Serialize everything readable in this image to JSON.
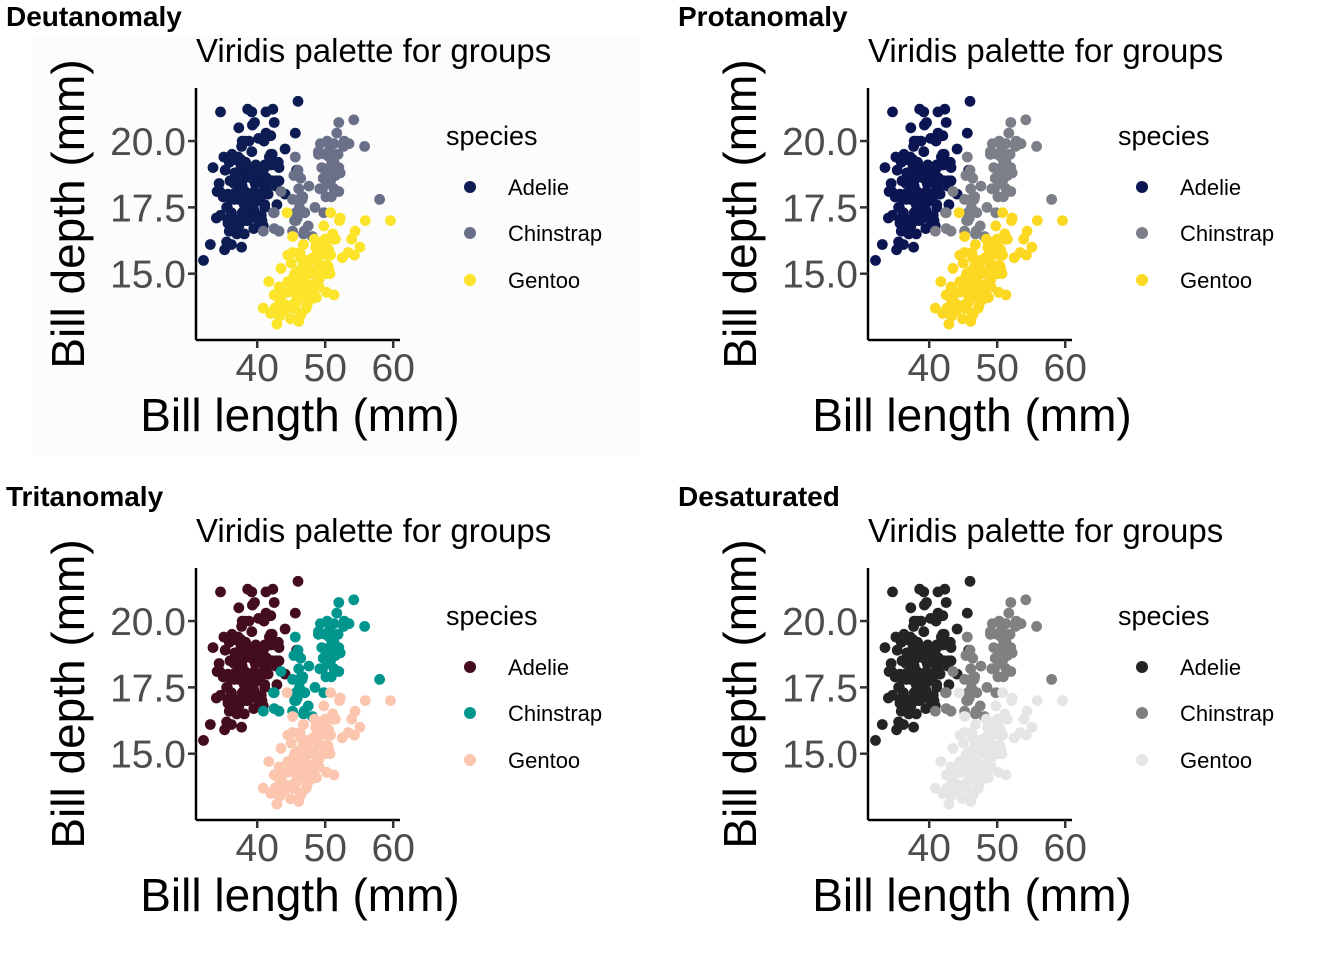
{
  "chart_data": [
    {
      "type": "scatter",
      "panel_tag": "Deutanomaly",
      "title": "Viridis palette for groups",
      "xlabel": "Bill length (mm)",
      "ylabel": "Bill depth (mm)",
      "xlim": [
        31,
        61
      ],
      "ylim": [
        12.5,
        22
      ],
      "xticks": [
        40,
        50,
        60
      ],
      "yticks": [
        15.0,
        17.5,
        20.0
      ],
      "ytick_labels": [
        "15.0",
        "17.5",
        "20.0"
      ],
      "grid": false,
      "legend": {
        "title": "species",
        "position": "right"
      },
      "background": "#fcfcfc",
      "series": [
        {
          "name": "Adelie",
          "color": "#0d1c53"
        },
        {
          "name": "Chinstrap",
          "color": "#6b7089"
        },
        {
          "name": "Gentoo",
          "color": "#fbe42a"
        }
      ]
    },
    {
      "type": "scatter",
      "panel_tag": "Protanomaly",
      "title": "Viridis palette for groups",
      "xlabel": "Bill length (mm)",
      "ylabel": "Bill depth (mm)",
      "xlim": [
        31,
        61
      ],
      "ylim": [
        12.5,
        22
      ],
      "xticks": [
        40,
        50,
        60
      ],
      "yticks": [
        15.0,
        17.5,
        20.0
      ],
      "ytick_labels": [
        "15.0",
        "17.5",
        "20.0"
      ],
      "grid": false,
      "legend": {
        "title": "species",
        "position": "right"
      },
      "background": "#ffffff",
      "series": [
        {
          "name": "Adelie",
          "color": "#0b1552"
        },
        {
          "name": "Chinstrap",
          "color": "#7c7e88"
        },
        {
          "name": "Gentoo",
          "color": "#fdd822"
        }
      ]
    },
    {
      "type": "scatter",
      "panel_tag": "Tritanomaly",
      "title": "Viridis palette for groups",
      "xlabel": "Bill length (mm)",
      "ylabel": "Bill depth (mm)",
      "xlim": [
        31,
        61
      ],
      "ylim": [
        12.5,
        22
      ],
      "xticks": [
        40,
        50,
        60
      ],
      "yticks": [
        15.0,
        17.5,
        20.0
      ],
      "ytick_labels": [
        "15.0",
        "17.5",
        "20.0"
      ],
      "grid": false,
      "legend": {
        "title": "species",
        "position": "right"
      },
      "background": "#ffffff",
      "series": [
        {
          "name": "Adelie",
          "color": "#430d1f"
        },
        {
          "name": "Chinstrap",
          "color": "#00968e"
        },
        {
          "name": "Gentoo",
          "color": "#fcc5ae"
        }
      ]
    },
    {
      "type": "scatter",
      "panel_tag": "Desaturated",
      "title": "Viridis palette for groups",
      "xlabel": "Bill length (mm)",
      "ylabel": "Bill depth (mm)",
      "xlim": [
        31,
        61
      ],
      "ylim": [
        12.5,
        22
      ],
      "xticks": [
        40,
        50,
        60
      ],
      "yticks": [
        15.0,
        17.5,
        20.0
      ],
      "ytick_labels": [
        "15.0",
        "17.5",
        "20.0"
      ],
      "grid": false,
      "legend": {
        "title": "species",
        "position": "right"
      },
      "background": "#ffffff",
      "series": [
        {
          "name": "Adelie",
          "color": "#242424"
        },
        {
          "name": "Chinstrap",
          "color": "#808080"
        },
        {
          "name": "Gentoo",
          "color": "#e5e5e5"
        }
      ]
    }
  ],
  "points": {
    "Adelie": [
      [
        39.1,
        18.7
      ],
      [
        39.5,
        17.4
      ],
      [
        40.3,
        18.0
      ],
      [
        36.7,
        19.3
      ],
      [
        39.3,
        20.6
      ],
      [
        38.9,
        17.8
      ],
      [
        39.2,
        19.6
      ],
      [
        34.1,
        18.1
      ],
      [
        42.0,
        20.2
      ],
      [
        37.8,
        17.1
      ],
      [
        37.8,
        17.3
      ],
      [
        41.1,
        17.6
      ],
      [
        38.6,
        21.2
      ],
      [
        34.6,
        21.1
      ],
      [
        36.6,
        17.8
      ],
      [
        38.7,
        19.0
      ],
      [
        42.5,
        20.7
      ],
      [
        34.4,
        18.4
      ],
      [
        46.0,
        21.5
      ],
      [
        37.8,
        18.3
      ],
      [
        37.7,
        18.7
      ],
      [
        35.9,
        19.2
      ],
      [
        38.2,
        18.1
      ],
      [
        38.8,
        17.2
      ],
      [
        35.3,
        18.9
      ],
      [
        40.6,
        18.6
      ],
      [
        40.5,
        17.9
      ],
      [
        37.9,
        18.6
      ],
      [
        40.5,
        18.9
      ],
      [
        39.5,
        16.7
      ],
      [
        37.2,
        18.1
      ],
      [
        39.5,
        17.8
      ],
      [
        40.9,
        18.9
      ],
      [
        36.4,
        17.0
      ],
      [
        39.2,
        21.1
      ],
      [
        38.8,
        20.0
      ],
      [
        42.2,
        18.5
      ],
      [
        37.6,
        19.3
      ],
      [
        39.8,
        19.1
      ],
      [
        36.5,
        18.0
      ],
      [
        40.8,
        18.4
      ],
      [
        36.0,
        18.5
      ],
      [
        44.1,
        19.7
      ],
      [
        37.0,
        16.9
      ],
      [
        39.6,
        18.8
      ],
      [
        41.1,
        19.0
      ],
      [
        37.5,
        18.9
      ],
      [
        36.0,
        17.9
      ],
      [
        42.3,
        21.2
      ],
      [
        39.6,
        17.7
      ],
      [
        40.1,
        18.9
      ],
      [
        35.0,
        17.9
      ],
      [
        42.0,
        19.5
      ],
      [
        34.5,
        18.1
      ],
      [
        41.4,
        18.6
      ],
      [
        39.0,
        17.5
      ],
      [
        40.6,
        18.8
      ],
      [
        36.5,
        16.6
      ],
      [
        37.6,
        19.1
      ],
      [
        35.7,
        16.9
      ],
      [
        41.3,
        21.1
      ],
      [
        37.6,
        17.0
      ],
      [
        41.1,
        18.2
      ],
      [
        36.4,
        17.1
      ],
      [
        41.6,
        18.0
      ],
      [
        35.5,
        16.2
      ],
      [
        41.1,
        19.1
      ],
      [
        35.9,
        16.6
      ],
      [
        41.8,
        19.4
      ],
      [
        33.5,
        19.0
      ],
      [
        39.7,
        18.4
      ],
      [
        39.6,
        17.2
      ],
      [
        45.8,
        18.9
      ],
      [
        35.5,
        17.5
      ],
      [
        42.8,
        18.5
      ],
      [
        40.9,
        16.8
      ],
      [
        37.2,
        19.4
      ],
      [
        36.2,
        16.1
      ],
      [
        42.1,
        19.1
      ],
      [
        34.6,
        17.2
      ],
      [
        42.9,
        17.6
      ],
      [
        36.7,
        18.8
      ],
      [
        35.1,
        19.4
      ],
      [
        37.3,
        17.8
      ],
      [
        41.3,
        20.3
      ],
      [
        36.3,
        19.5
      ],
      [
        36.9,
        18.6
      ],
      [
        38.3,
        19.2
      ],
      [
        38.9,
        18.8
      ],
      [
        35.7,
        18.0
      ],
      [
        41.1,
        18.1
      ],
      [
        34.0,
        17.1
      ],
      [
        39.6,
        18.1
      ],
      [
        36.2,
        17.3
      ],
      [
        40.8,
        18.9
      ],
      [
        38.1,
        18.6
      ],
      [
        40.3,
        18.5
      ],
      [
        33.1,
        16.1
      ],
      [
        43.2,
        18.5
      ],
      [
        35.0,
        17.9
      ],
      [
        41.0,
        20.0
      ],
      [
        37.7,
        16.0
      ],
      [
        37.8,
        20.0
      ],
      [
        37.9,
        18.6
      ],
      [
        39.7,
        18.9
      ],
      [
        38.6,
        17.2
      ],
      [
        38.2,
        20.0
      ],
      [
        38.1,
        17.0
      ],
      [
        43.2,
        19.0
      ],
      [
        38.1,
        16.5
      ],
      [
        45.6,
        20.3
      ],
      [
        39.7,
        17.7
      ],
      [
        42.2,
        19.5
      ],
      [
        39.6,
        20.7
      ],
      [
        42.7,
        18.3
      ],
      [
        38.6,
        17.0
      ],
      [
        37.3,
        20.5
      ],
      [
        35.7,
        17.0
      ],
      [
        41.1,
        18.6
      ],
      [
        36.2,
        17.2
      ],
      [
        37.7,
        19.8
      ],
      [
        40.2,
        17.0
      ],
      [
        41.4,
        18.5
      ],
      [
        35.2,
        15.9
      ],
      [
        40.6,
        19.0
      ],
      [
        38.8,
        17.6
      ],
      [
        41.5,
        18.3
      ],
      [
        39.0,
        17.1
      ],
      [
        44.1,
        18.0
      ],
      [
        38.5,
        17.9
      ],
      [
        43.1,
        19.2
      ],
      [
        36.8,
        18.5
      ],
      [
        37.5,
        18.5
      ],
      [
        38.1,
        17.6
      ],
      [
        41.1,
        17.5
      ],
      [
        35.6,
        17.5
      ],
      [
        40.2,
        20.1
      ],
      [
        37.0,
        16.5
      ],
      [
        39.7,
        17.9
      ],
      [
        40.2,
        17.1
      ],
      [
        40.6,
        17.2
      ],
      [
        32.1,
        15.5
      ],
      [
        40.7,
        17.0
      ],
      [
        37.3,
        16.8
      ],
      [
        39.0,
        18.7
      ],
      [
        39.2,
        18.6
      ],
      [
        36.6,
        18.4
      ],
      [
        36.0,
        17.8
      ],
      [
        37.8,
        18.1
      ],
      [
        36.0,
        17.1
      ],
      [
        41.5,
        18.5
      ]
    ],
    "Chinstrap": [
      [
        46.5,
        17.9
      ],
      [
        50.0,
        19.5
      ],
      [
        51.3,
        19.2
      ],
      [
        45.4,
        18.7
      ],
      [
        52.7,
        19.8
      ],
      [
        45.2,
        17.8
      ],
      [
        46.1,
        18.2
      ],
      [
        51.3,
        18.2
      ],
      [
        46.0,
        18.9
      ],
      [
        51.3,
        19.9
      ],
      [
        46.6,
        17.8
      ],
      [
        51.7,
        20.3
      ],
      [
        47.0,
        17.3
      ],
      [
        52.0,
        18.1
      ],
      [
        45.9,
        17.1
      ],
      [
        50.5,
        19.6
      ],
      [
        50.3,
        20.0
      ],
      [
        58.0,
        17.8
      ],
      [
        46.4,
        18.6
      ],
      [
        49.2,
        18.2
      ],
      [
        42.4,
        17.3
      ],
      [
        48.5,
        17.5
      ],
      [
        43.2,
        16.6
      ],
      [
        50.6,
        19.4
      ],
      [
        46.7,
        17.9
      ],
      [
        52.0,
        19.0
      ],
      [
        50.5,
        18.4
      ],
      [
        49.5,
        19.0
      ],
      [
        46.4,
        17.8
      ],
      [
        52.8,
        20.0
      ],
      [
        40.9,
        16.6
      ],
      [
        54.2,
        20.8
      ],
      [
        42.5,
        16.7
      ],
      [
        51.0,
        18.8
      ],
      [
        49.7,
        18.6
      ],
      [
        47.5,
        16.8
      ],
      [
        47.6,
        18.3
      ],
      [
        52.0,
        20.7
      ],
      [
        46.9,
        16.6
      ],
      [
        53.5,
        19.9
      ],
      [
        49.0,
        19.5
      ],
      [
        46.2,
        17.5
      ],
      [
        50.9,
        19.1
      ],
      [
        45.5,
        17.0
      ],
      [
        50.9,
        17.9
      ],
      [
        50.8,
        18.5
      ],
      [
        50.1,
        17.9
      ],
      [
        49.0,
        19.6
      ],
      [
        51.5,
        18.7
      ],
      [
        49.8,
        17.3
      ],
      [
        48.1,
        16.4
      ],
      [
        51.4,
        19.0
      ],
      [
        45.7,
        17.3
      ],
      [
        50.7,
        19.7
      ],
      [
        42.5,
        17.3
      ],
      [
        52.2,
        18.8
      ],
      [
        45.2,
        16.6
      ],
      [
        49.3,
        19.9
      ],
      [
        50.2,
        18.8
      ],
      [
        45.6,
        19.4
      ],
      [
        51.9,
        19.5
      ],
      [
        46.8,
        16.5
      ],
      [
        45.7,
        17.0
      ],
      [
        55.8,
        19.8
      ],
      [
        43.5,
        18.1
      ],
      [
        49.6,
        18.2
      ],
      [
        50.8,
        19.0
      ],
      [
        50.2,
        18.7
      ]
    ],
    "Gentoo": [
      [
        46.1,
        13.2
      ],
      [
        50.0,
        16.3
      ],
      [
        48.7,
        14.1
      ],
      [
        50.0,
        15.2
      ],
      [
        47.6,
        14.5
      ],
      [
        46.5,
        13.5
      ],
      [
        45.4,
        14.6
      ],
      [
        46.7,
        15.3
      ],
      [
        43.3,
        13.4
      ],
      [
        46.8,
        15.4
      ],
      [
        40.9,
        13.7
      ],
      [
        49.0,
        16.1
      ],
      [
        45.5,
        13.7
      ],
      [
        48.4,
        14.6
      ],
      [
        45.8,
        14.6
      ],
      [
        49.3,
        15.7
      ],
      [
        42.0,
        13.5
      ],
      [
        49.2,
        15.2
      ],
      [
        46.2,
        14.5
      ],
      [
        48.7,
        15.1
      ],
      [
        50.2,
        14.3
      ],
      [
        45.1,
        14.5
      ],
      [
        46.5,
        14.5
      ],
      [
        46.3,
        15.8
      ],
      [
        42.9,
        13.1
      ],
      [
        46.1,
        15.1
      ],
      [
        44.5,
        14.3
      ],
      [
        47.8,
        15.0
      ],
      [
        48.2,
        14.3
      ],
      [
        50.0,
        15.3
      ],
      [
        47.3,
        15.3
      ],
      [
        42.8,
        14.2
      ],
      [
        45.1,
        14.5
      ],
      [
        59.6,
        17.0
      ],
      [
        49.1,
        14.8
      ],
      [
        48.4,
        16.3
      ],
      [
        42.6,
        13.7
      ],
      [
        44.4,
        17.3
      ],
      [
        44.0,
        13.6
      ],
      [
        48.7,
        15.7
      ],
      [
        42.7,
        13.7
      ],
      [
        49.6,
        16.0
      ],
      [
        45.3,
        13.7
      ],
      [
        49.6,
        15.0
      ],
      [
        50.5,
        15.9
      ],
      [
        43.6,
        13.9
      ],
      [
        45.5,
        13.9
      ],
      [
        50.5,
        15.9
      ],
      [
        44.9,
        13.3
      ],
      [
        45.2,
        15.8
      ],
      [
        46.6,
        14.2
      ],
      [
        48.5,
        14.1
      ],
      [
        45.1,
        14.4
      ],
      [
        50.1,
        15.0
      ],
      [
        46.5,
        14.4
      ],
      [
        45.0,
        15.4
      ],
      [
        43.8,
        13.9
      ],
      [
        45.5,
        15.0
      ],
      [
        43.2,
        14.5
      ],
      [
        50.4,
        15.3
      ],
      [
        45.3,
        13.8
      ],
      [
        46.2,
        14.9
      ],
      [
        45.7,
        13.9
      ],
      [
        54.3,
        15.7
      ],
      [
        45.8,
        14.2
      ],
      [
        49.8,
        16.8
      ],
      [
        46.2,
        14.4
      ],
      [
        49.5,
        16.2
      ],
      [
        43.5,
        14.2
      ],
      [
        50.7,
        15.0
      ],
      [
        47.7,
        15.0
      ],
      [
        46.4,
        15.6
      ],
      [
        48.2,
        15.6
      ],
      [
        46.5,
        14.8
      ],
      [
        46.4,
        15.0
      ],
      [
        48.6,
        16.0
      ],
      [
        47.5,
        14.2
      ],
      [
        51.1,
        16.3
      ],
      [
        45.2,
        13.8
      ],
      [
        45.2,
        16.4
      ],
      [
        49.1,
        14.5
      ],
      [
        52.5,
        15.6
      ],
      [
        47.4,
        14.6
      ],
      [
        50.0,
        15.9
      ],
      [
        44.9,
        13.8
      ],
      [
        50.8,
        17.3
      ],
      [
        43.4,
        14.4
      ],
      [
        51.3,
        14.2
      ],
      [
        47.5,
        14.0
      ],
      [
        52.1,
        17.0
      ],
      [
        47.5,
        15.0
      ],
      [
        52.2,
        17.1
      ],
      [
        45.5,
        14.5
      ],
      [
        49.5,
        16.1
      ],
      [
        44.5,
        14.7
      ],
      [
        50.8,
        15.7
      ],
      [
        49.4,
        15.8
      ],
      [
        46.9,
        14.6
      ],
      [
        48.4,
        14.4
      ],
      [
        51.1,
        16.5
      ],
      [
        48.5,
        15.0
      ],
      [
        55.9,
        17.0
      ],
      [
        47.2,
        15.5
      ],
      [
        49.1,
        15.0
      ],
      [
        47.3,
        13.8
      ],
      [
        46.8,
        16.1
      ],
      [
        41.7,
        14.7
      ],
      [
        53.4,
        15.8
      ],
      [
        43.3,
        14.0
      ],
      [
        48.1,
        15.1
      ],
      [
        50.5,
        15.2
      ],
      [
        49.8,
        15.9
      ],
      [
        43.5,
        15.2
      ],
      [
        51.5,
        16.3
      ],
      [
        46.2,
        14.1
      ],
      [
        55.1,
        16.0
      ],
      [
        44.5,
        15.7
      ],
      [
        48.8,
        16.2
      ],
      [
        47.2,
        13.7
      ],
      [
        46.8,
        14.3
      ],
      [
        50.4,
        15.7
      ],
      [
        45.2,
        14.8
      ],
      [
        49.9,
        16.1
      ],
      [
        42.5,
        14.2
      ],
      [
        45.6,
        14.8
      ],
      [
        47.7,
        14.0
      ],
      [
        46.3,
        13.4
      ],
      [
        48.9,
        15.4
      ],
      [
        53.9,
        16.3
      ],
      [
        54.4,
        16.6
      ]
    ]
  }
}
